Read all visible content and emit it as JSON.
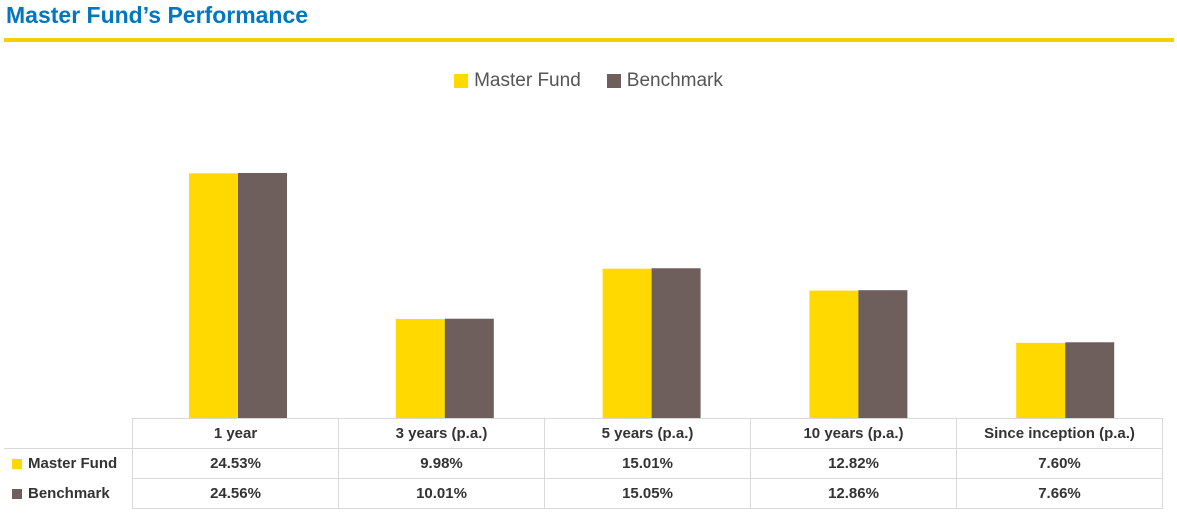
{
  "header": {
    "title": "Master Fund’s Performance"
  },
  "colors": {
    "title": "#0077c0",
    "rule": "#f5cf00",
    "master": "#ffd900",
    "benchmark": "#6e5e5c"
  },
  "chart_data": {
    "type": "bar",
    "title": "",
    "xlabel": "",
    "ylabel": "",
    "ylim": [
      0,
      30
    ],
    "grid": false,
    "legend_position": "top-center",
    "categories": [
      "1 year",
      "3 years (p.a.)",
      "5 years (p.a.)",
      "10 years (p.a.)",
      "Since inception (p.a.)"
    ],
    "series": [
      {
        "name": "Master Fund",
        "values": [
          24.53,
          9.98,
          15.01,
          12.82,
          7.6
        ],
        "labels": [
          "24.53%",
          "9.98%",
          "15.01%",
          "12.82%",
          "7.60%"
        ]
      },
      {
        "name": "Benchmark",
        "values": [
          24.56,
          10.01,
          15.05,
          12.86,
          7.66
        ],
        "labels": [
          "24.56%",
          "10.01%",
          "15.05%",
          "12.86%",
          "7.66%"
        ]
      }
    ]
  }
}
